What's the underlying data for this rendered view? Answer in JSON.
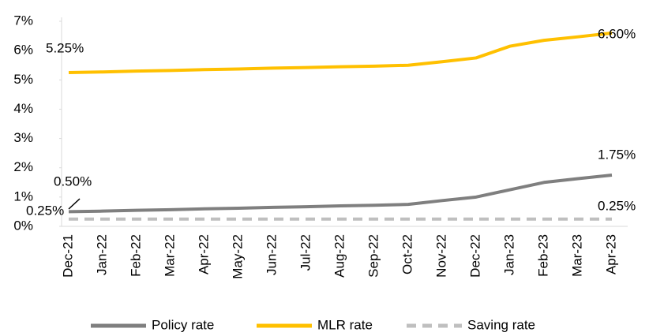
{
  "chart_data": {
    "type": "line",
    "categories": [
      "Dec-21",
      "Jan-22",
      "Feb-22",
      "Mar-22",
      "Apr-22",
      "May-22",
      "Jun-22",
      "Jul-22",
      "Aug-22",
      "Sep-22",
      "Oct-22",
      "Nov-22",
      "Dec-22",
      "Jan-23",
      "Feb-23",
      "Mar-23",
      "Apr-23"
    ],
    "series": [
      {
        "name": "Policy rate",
        "color": "#7f7f7f",
        "dash": false,
        "values": [
          0.5,
          0.52,
          0.55,
          0.57,
          0.6,
          0.62,
          0.65,
          0.67,
          0.7,
          0.72,
          0.75,
          0.88,
          1.0,
          1.25,
          1.5,
          1.63,
          1.75
        ],
        "value_labels": [
          "0.50%",
          null,
          null,
          null,
          null,
          null,
          null,
          null,
          null,
          null,
          null,
          null,
          null,
          null,
          null,
          null,
          "1.75%"
        ]
      },
      {
        "name": "MLR rate",
        "color": "#ffc000",
        "dash": false,
        "values": [
          5.25,
          5.27,
          5.3,
          5.32,
          5.35,
          5.37,
          5.4,
          5.42,
          5.45,
          5.47,
          5.5,
          5.62,
          5.75,
          6.15,
          6.35,
          6.47,
          6.6
        ],
        "value_labels": [
          "5.25%",
          null,
          null,
          null,
          null,
          null,
          null,
          null,
          null,
          null,
          null,
          null,
          null,
          null,
          null,
          null,
          "6.60%"
        ]
      },
      {
        "name": "Saving rate",
        "color": "#bfbfbf",
        "dash": true,
        "values": [
          0.25,
          0.25,
          0.25,
          0.25,
          0.25,
          0.25,
          0.25,
          0.25,
          0.25,
          0.25,
          0.25,
          0.25,
          0.25,
          0.25,
          0.25,
          0.25,
          0.25
        ],
        "value_labels": [
          "0.25%",
          null,
          null,
          null,
          null,
          null,
          null,
          null,
          null,
          null,
          null,
          null,
          null,
          null,
          null,
          null,
          "0.25%"
        ]
      }
    ],
    "ylim": [
      0,
      7
    ],
    "yticks": [
      {
        "value": 0,
        "label": "0%"
      },
      {
        "value": 1,
        "label": "1%"
      },
      {
        "value": 2,
        "label": "2%"
      },
      {
        "value": 3,
        "label": "3%"
      },
      {
        "value": 4,
        "label": "4%"
      },
      {
        "value": 5,
        "label": "5%"
      },
      {
        "value": 6,
        "label": "6%"
      },
      {
        "value": 7,
        "label": "7%"
      }
    ],
    "grid": false,
    "legend": "bottom"
  }
}
